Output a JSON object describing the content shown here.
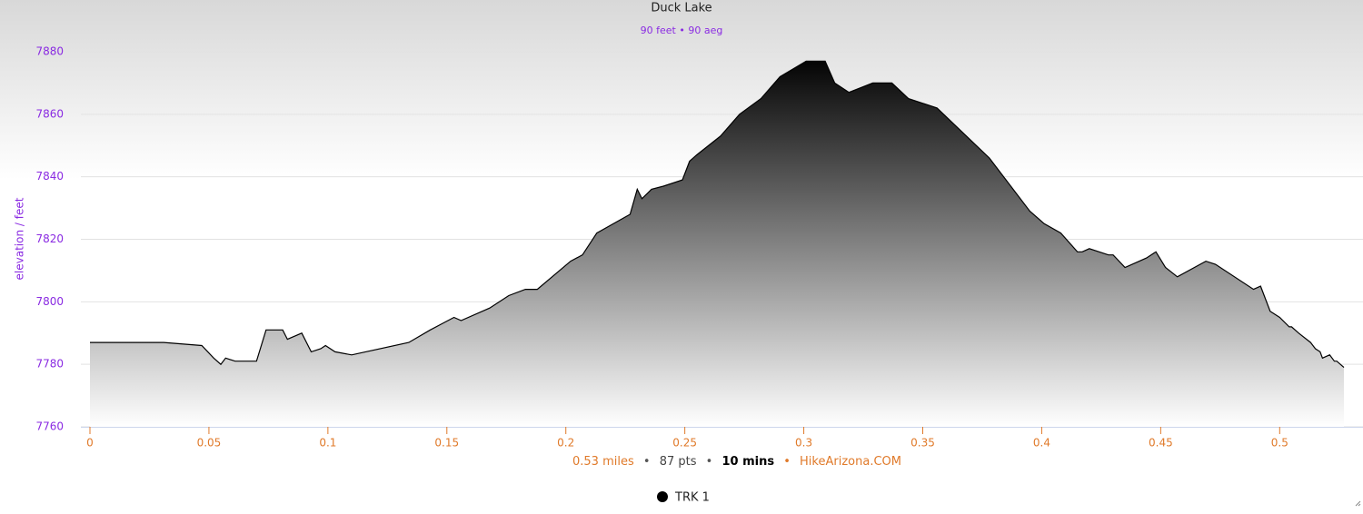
{
  "chart_data": {
    "type": "area",
    "title": "Duck Lake",
    "subtitle": "90 feet • 90 aeg",
    "y_label": "elevation / feet",
    "footer": {
      "distance": "0.53 miles",
      "separator": "•",
      "points": "87 pts",
      "duration": "10 mins",
      "site": "HikeArizona.COM"
    },
    "xlim": [
      0,
      0.527
    ],
    "ylim": [
      7760,
      7880
    ],
    "xticks": [
      0,
      0.05,
      0.1,
      0.15,
      0.2,
      0.25,
      0.3,
      0.35,
      0.4,
      0.45,
      0.5
    ],
    "yticks": [
      7760,
      7780,
      7800,
      7820,
      7840,
      7860,
      7880
    ],
    "grid": true,
    "legend": "bottom",
    "x": [
      0,
      0.031,
      0.047,
      0.052,
      0.055,
      0.057,
      0.061,
      0.07,
      0.074,
      0.081,
      0.083,
      0.089,
      0.093,
      0.097,
      0.099,
      0.103,
      0.11,
      0.134,
      0.143,
      0.148,
      0.153,
      0.156,
      0.168,
      0.176,
      0.183,
      0.188,
      0.202,
      0.207,
      0.213,
      0.227,
      0.23,
      0.232,
      0.236,
      0.241,
      0.249,
      0.252,
      0.255,
      0.265,
      0.273,
      0.282,
      0.29,
      0.301,
      0.309,
      0.313,
      0.319,
      0.329,
      0.337,
      0.344,
      0.356,
      0.378,
      0.395,
      0.401,
      0.408,
      0.415,
      0.417,
      0.42,
      0.428,
      0.43,
      0.435,
      0.444,
      0.448,
      0.452,
      0.457,
      0.469,
      0.473,
      0.489,
      0.492,
      0.496,
      0.5,
      0.504,
      0.505,
      0.508,
      0.513,
      0.515,
      0.517,
      0.518,
      0.521,
      0.523,
      0.524,
      0.527
    ],
    "series": [
      {
        "name": "TRK 1",
        "color": "#000000",
        "values": [
          7787,
          7787,
          7786,
          7782,
          7780,
          7782,
          7781,
          7781,
          7791,
          7791,
          7788,
          7790,
          7784,
          7785,
          7786,
          7784,
          7783,
          7787,
          7791,
          7793,
          7795,
          7794,
          7798,
          7802,
          7804,
          7804,
          7813,
          7815,
          7822,
          7828,
          7836,
          7833,
          7836,
          7837,
          7839,
          7845,
          7847,
          7853,
          7860,
          7865,
          7872,
          7877,
          7877,
          7870,
          7867,
          7870,
          7870,
          7865,
          7862,
          7846,
          7829,
          7825,
          7822,
          7816,
          7816,
          7817,
          7815,
          7815,
          7811,
          7814,
          7816,
          7811,
          7808,
          7813,
          7812,
          7804,
          7805,
          7797,
          7795,
          7792,
          7792,
          7790,
          7787,
          7785,
          7784,
          7782,
          7783,
          7781,
          7781,
          7779
        ]
      }
    ]
  }
}
